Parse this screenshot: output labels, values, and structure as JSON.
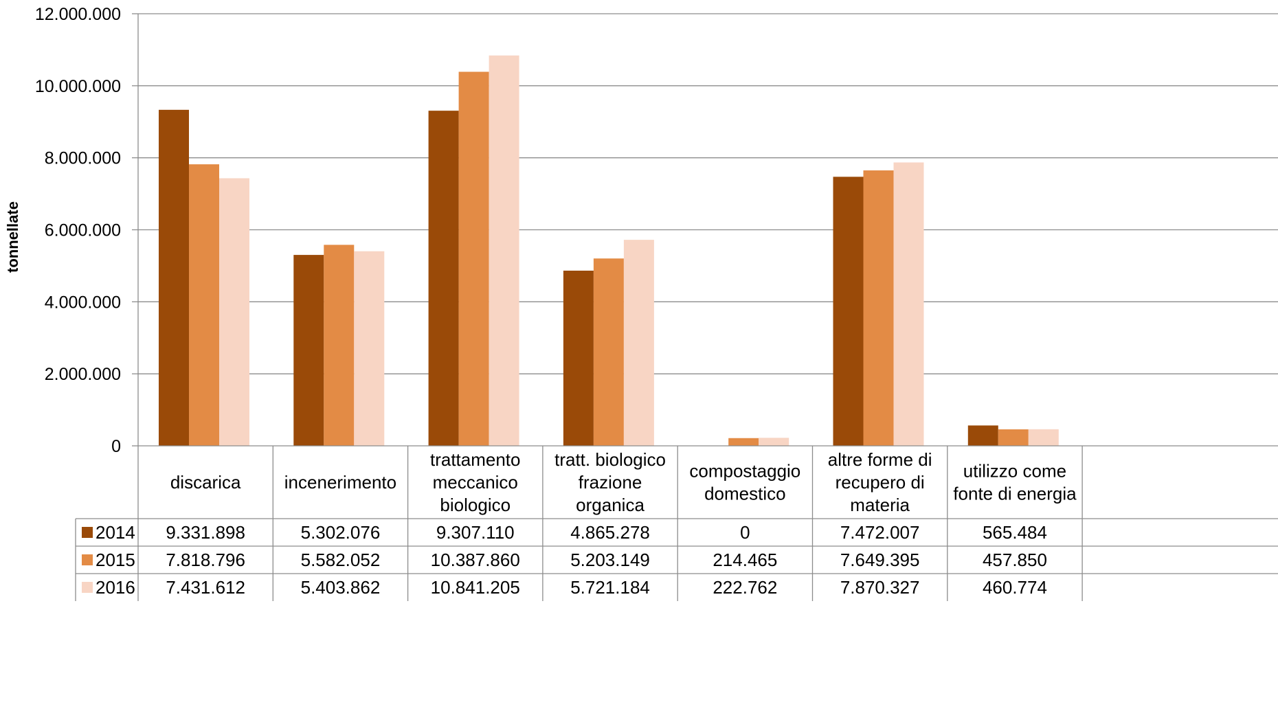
{
  "chart_data": {
    "type": "bar",
    "title": "",
    "xlabel": "",
    "ylabel": "tonnellate",
    "ylim": [
      0,
      12000000
    ],
    "yticks": [
      0,
      2000000,
      4000000,
      6000000,
      8000000,
      10000000,
      12000000
    ],
    "ytick_labels": [
      "0",
      "2.000.000",
      "4.000.000",
      "6.000.000",
      "8.000.000",
      "10.000.000",
      "12.000.000"
    ],
    "grid": true,
    "legend": "data-table-left",
    "categories": [
      "discarica",
      "incenerimento",
      "trattamento meccanico biologico",
      "tratt. biologico frazione organica",
      "compostaggio domestico",
      "altre forme di recupero di materia",
      "utilizzo come fonte di energia"
    ],
    "category_lines": [
      [
        "discarica"
      ],
      [
        "incenerimento"
      ],
      [
        "trattamento",
        "meccanico",
        "biologico"
      ],
      [
        "tratt. biologico",
        "frazione",
        "organica"
      ],
      [
        "compostaggio",
        "domestico"
      ],
      [
        "altre forme di",
        "recupero di",
        "materia"
      ],
      [
        "utilizzo come",
        "fonte di energia"
      ]
    ],
    "series": [
      {
        "name": "2014",
        "color": "#9a4a08",
        "values": [
          9331898,
          5302076,
          9307110,
          4865278,
          0,
          7472007,
          565484
        ],
        "labels": [
          "9.331.898",
          "5.302.076",
          "9.307.110",
          "4.865.278",
          "0",
          "7.472.007",
          "565.484"
        ]
      },
      {
        "name": "2015",
        "color": "#e38b45",
        "values": [
          7818796,
          5582052,
          10387860,
          5203149,
          214465,
          7649395,
          457850
        ],
        "labels": [
          "7.818.796",
          "5.582.052",
          "10.387.860",
          "5.203.149",
          "214.465",
          "7.649.395",
          "457.850"
        ]
      },
      {
        "name": "2016",
        "color": "#f8d5c4",
        "values": [
          7431612,
          5403862,
          10841205,
          5721184,
          222762,
          7870327,
          460774
        ],
        "labels": [
          "7.431.612",
          "5.403.862",
          "10.841.205",
          "5.721.184",
          "222.762",
          "7.870.327",
          "460.774"
        ]
      }
    ]
  }
}
